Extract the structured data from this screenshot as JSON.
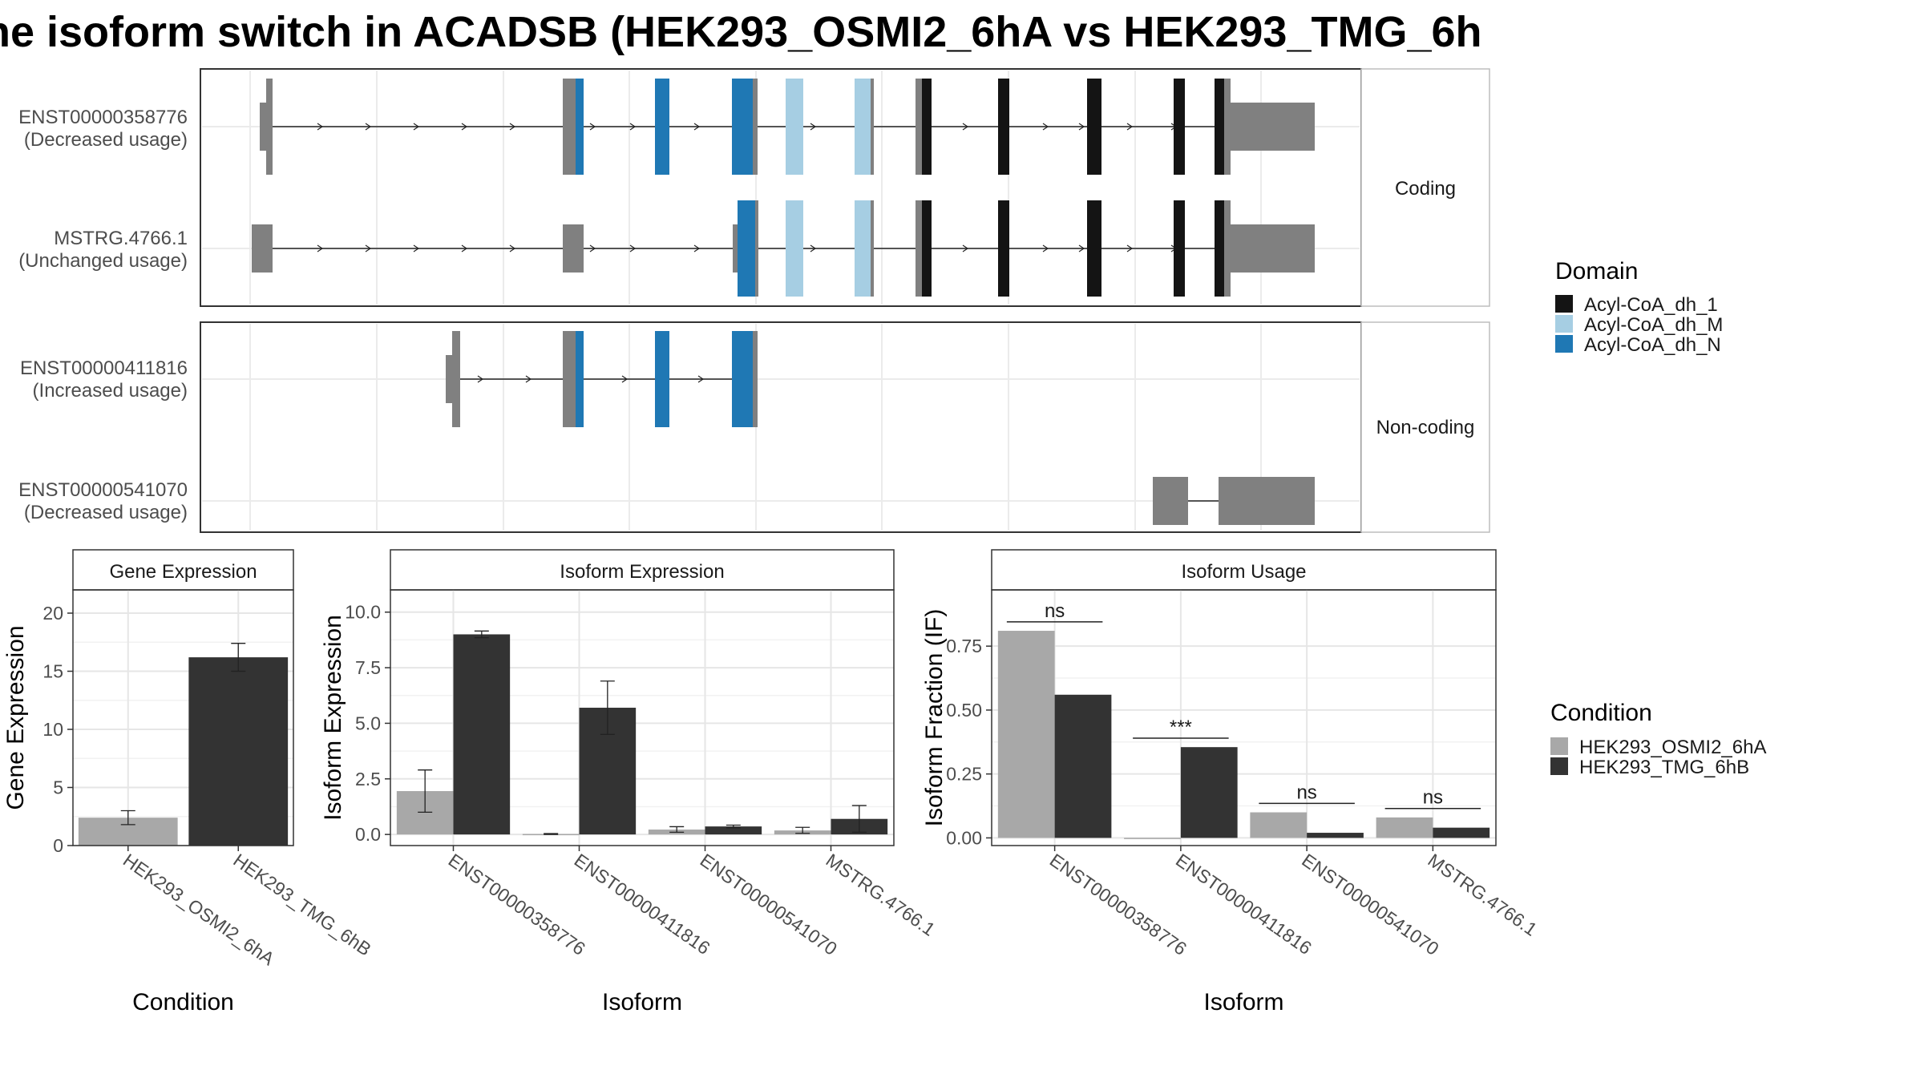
{
  "title": "ne isoform switch in ACADSB (HEK293_OSMI2_6hA vs HEK293_TMG_6h",
  "transcripts": [
    {
      "id": "ENST00000358776",
      "usage": "(Decreased usage)",
      "panel": "Coding"
    },
    {
      "id": "MSTRG.4766.1",
      "usage": "(Unchanged usage)",
      "panel": "Coding"
    },
    {
      "id": "ENST00000411816",
      "usage": "(Increased usage)",
      "panel": "Non-coding"
    },
    {
      "id": "ENST00000541070",
      "usage": "(Decreased usage)",
      "panel": "Non-coding"
    }
  ],
  "strips": {
    "coding": "Coding",
    "noncoding": "Non-coding"
  },
  "legend_domain": {
    "title": "Domain",
    "items": [
      {
        "label": "Acyl-CoA_dh_1",
        "color": "#141414"
      },
      {
        "label": "Acyl-CoA_dh_M",
        "color": "#a6cee3"
      },
      {
        "label": "Acyl-CoA_dh_N",
        "color": "#1f78b4"
      }
    ]
  },
  "legend_condition": {
    "title": "Condition",
    "items": [
      {
        "label": "HEK293_OSMI2_6hA",
        "color": "#a8a8a8"
      },
      {
        "label": "HEK293_TMG_6hB",
        "color": "#333333"
      }
    ]
  },
  "chart_data": [
    {
      "type": "bar",
      "title": "Gene Expression",
      "xlabel": "Condition",
      "ylabel": "Gene Expression",
      "categories": [
        "HEK293_OSMI2_6hA",
        "HEK293_TMG_6hB"
      ],
      "values": [
        2.4,
        16.2
      ],
      "errors": [
        [
          1.8,
          3.0
        ],
        [
          15.0,
          17.4
        ]
      ],
      "ylim": [
        0,
        22
      ],
      "yticks": [
        0,
        5,
        10,
        15,
        20
      ],
      "ytick_labels": [
        "0",
        "5",
        "10",
        "15",
        "20"
      ]
    },
    {
      "type": "bar",
      "title": "Isoform Expression",
      "xlabel": "Isoform",
      "ylabel": "Isoform Expression",
      "categories": [
        "ENST00000358776",
        "ENST00000411816",
        "ENST00000541070",
        "MSTRG.4766.1"
      ],
      "series": [
        {
          "name": "HEK293_OSMI2_6hA",
          "values": [
            1.95,
            0.02,
            0.22,
            0.18
          ],
          "errors": [
            [
              1.0,
              2.9
            ],
            [
              0.0,
              0.04
            ],
            [
              0.1,
              0.35
            ],
            [
              0.05,
              0.32
            ]
          ]
        },
        {
          "name": "HEK293_TMG_6hB",
          "values": [
            9.0,
            5.7,
            0.36,
            0.7
          ],
          "errors": [
            [
              8.85,
              9.15
            ],
            [
              4.5,
              6.9
            ],
            [
              0.3,
              0.42
            ],
            [
              0.1,
              1.3
            ]
          ]
        }
      ],
      "ylim": [
        -0.5,
        11
      ],
      "yticks": [
        0,
        2.5,
        5,
        7.5,
        10
      ],
      "ytick_labels": [
        "0.0",
        "2.5",
        "5.0",
        "7.5",
        "10.0"
      ]
    },
    {
      "type": "bar",
      "title": "Isoform Usage",
      "xlabel": "Isoform",
      "ylabel": "Isoform Fraction (IF)",
      "categories": [
        "ENST00000358776",
        "ENST00000411816",
        "ENST00000541070",
        "MSTRG.4766.1"
      ],
      "series": [
        {
          "name": "HEK293_OSMI2_6hA",
          "values": [
            0.81,
            0.0,
            0.1,
            0.08
          ]
        },
        {
          "name": "HEK293_TMG_6hB",
          "values": [
            0.56,
            0.355,
            0.02,
            0.04
          ]
        }
      ],
      "significance": [
        "ns",
        "***",
        "ns",
        "ns"
      ],
      "sig_levels": [
        0.845,
        0.39,
        0.135,
        0.115
      ],
      "ylim": [
        -0.03,
        0.97
      ],
      "yticks": [
        0,
        0.25,
        0.5,
        0.75
      ],
      "ytick_labels": [
        "0.00",
        "0.25",
        "0.50",
        "0.75"
      ]
    }
  ]
}
